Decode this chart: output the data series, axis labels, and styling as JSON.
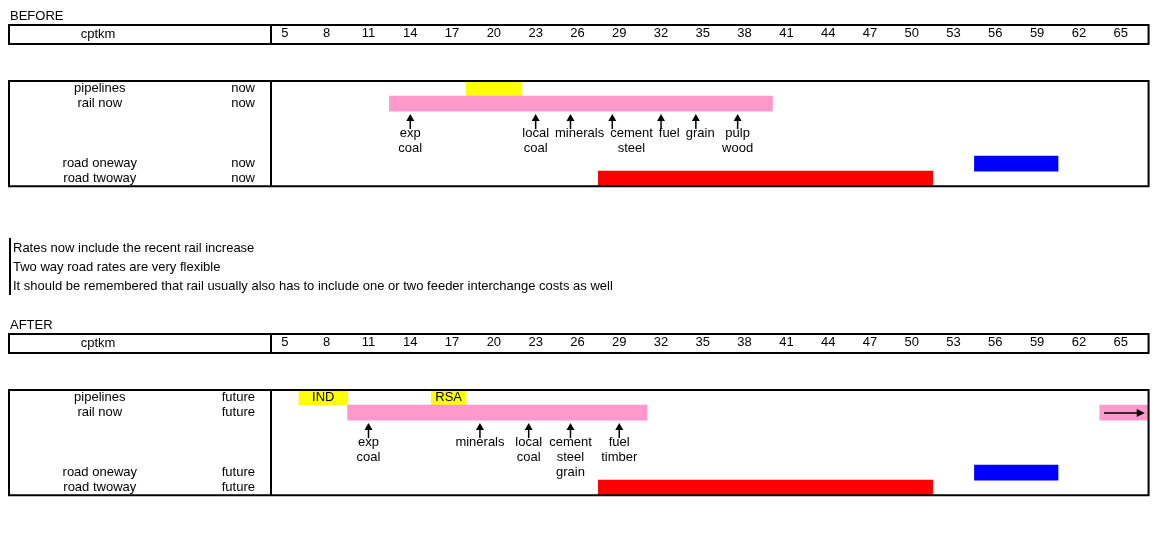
{
  "chart_data": [
    {
      "type": "bar",
      "orientation": "horizontal",
      "title": "BEFORE",
      "xlabel": "cptkm",
      "xlim": [
        4,
        67
      ],
      "xticks": [
        5,
        8,
        11,
        14,
        17,
        20,
        23,
        26,
        29,
        32,
        35,
        38,
        41,
        44,
        47,
        50,
        53,
        56,
        59,
        62,
        65
      ],
      "categories": [
        "pipelines",
        "rail now",
        null,
        null,
        null,
        "road oneway",
        "road twoway"
      ],
      "y2_categories": [
        "now",
        "now",
        null,
        null,
        null,
        "now",
        "now"
      ],
      "series": [
        {
          "base": [
            18,
            12.5,
            null,
            null,
            null,
            54.5,
            27.5
          ],
          "values": [
            4,
            27.5,
            null,
            null,
            null,
            6,
            24
          ],
          "colors": [
            "#ffff00",
            "#ff99cc",
            null,
            null,
            null,
            "#0000ff",
            "#ff0000"
          ]
        }
      ],
      "annotations": [
        {
          "text": "exp\ncoal",
          "x": 14,
          "y": "rail now"
        },
        {
          "text": "local\ncoal",
          "x": 23,
          "y": "rail now"
        },
        {
          "text": "minerals",
          "x": 25.5,
          "y": "rail now"
        },
        {
          "text": "cement\nsteel",
          "x": 28.5,
          "y": "rail now"
        },
        {
          "text": "fuel",
          "x": 32,
          "y": "rail now"
        },
        {
          "text": "grain",
          "x": 34.5,
          "y": "rail now"
        },
        {
          "text": "pulp\nwood",
          "x": 37.5,
          "y": "rail now"
        },
        "Rates now include the recent rail increase",
        "Two way road rates are very flexible",
        "It should be remembered that rail usually also has to include one or two feeder interchange costs as well"
      ]
    },
    {
      "type": "bar",
      "orientation": "horizontal",
      "title": "AFTER",
      "xlabel": "cptkm",
      "xlim": [
        4,
        67
      ],
      "xticks": [
        5,
        8,
        11,
        14,
        17,
        20,
        23,
        26,
        29,
        32,
        35,
        38,
        41,
        44,
        47,
        50,
        53,
        56,
        59,
        62,
        65
      ],
      "categories": [
        "pipelines",
        "rail now",
        null,
        null,
        null,
        "road oneway",
        "road twoway"
      ],
      "y2_categories": [
        "future",
        "future",
        null,
        null,
        null,
        "future",
        "future"
      ],
      "series": [
        {
          "base": [
            6,
            9.5,
            null,
            null,
            null,
            54.5,
            27.5
          ],
          "values": [
            3.5,
            21.5,
            null,
            null,
            null,
            6,
            24
          ],
          "colors": [
            "#ffff00",
            "#ff99cc",
            null,
            null,
            null,
            "#0000ff",
            "#ff0000"
          ],
          "value_labels": [
            "IND",
            null,
            null,
            null,
            null,
            null,
            null
          ]
        },
        {
          "base": [
            15.5,
            63.5,
            null,
            null,
            null,
            null,
            null
          ],
          "values": [
            2.5,
            3.5,
            null,
            null,
            null,
            null,
            null
          ],
          "colors": [
            "#ffff00",
            "#ff99cc",
            null,
            null,
            null,
            null,
            null
          ],
          "value_labels": [
            "RSA",
            null,
            null,
            null,
            null,
            null,
            null
          ]
        }
      ],
      "annotations": [
        {
          "text": "exp\ncoal",
          "x": 11,
          "y": "rail now"
        },
        {
          "text": "minerals",
          "x": 19,
          "y": "rail now"
        },
        {
          "text": "local\ncoal",
          "x": 22.5,
          "y": "rail now"
        },
        {
          "text": "cement\nsteel\ngrain",
          "x": 25.5,
          "y": "rail now"
        },
        {
          "text": "fuel\ntimber",
          "x": 29,
          "y": "rail now"
        }
      ]
    }
  ]
}
